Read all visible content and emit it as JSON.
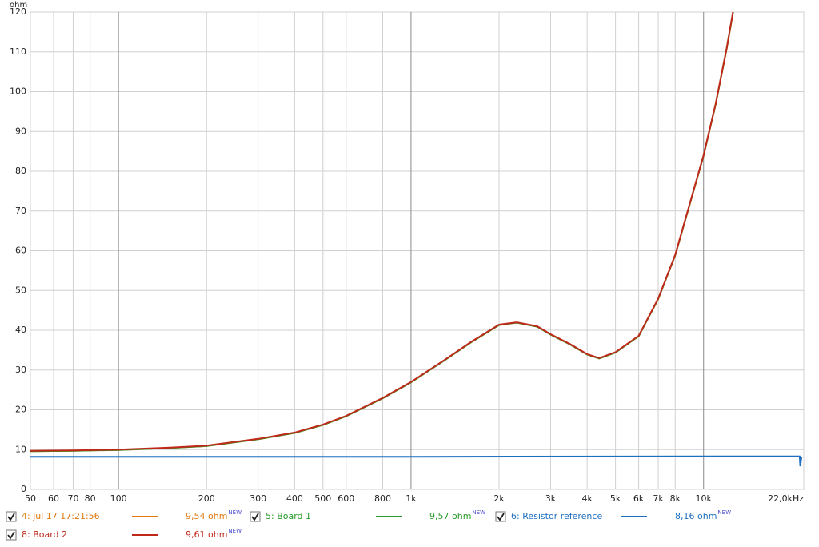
{
  "chart_data": {
    "type": "line",
    "y_label": "ohm",
    "x_scale": "log",
    "grid": true,
    "xlim": [
      50,
      22000
    ],
    "ylim": [
      0,
      120
    ],
    "xticks": [
      50,
      60,
      70,
      80,
      100,
      200,
      300,
      400,
      500,
      600,
      800,
      {
        "value": 1000,
        "label": "1k"
      },
      {
        "value": 2000,
        "label": "2k"
      },
      {
        "value": 3000,
        "label": "3k"
      },
      {
        "value": 4000,
        "label": "4k"
      },
      {
        "value": 5000,
        "label": "5k"
      },
      {
        "value": 6000,
        "label": "6k"
      },
      {
        "value": 7000,
        "label": "7k"
      },
      {
        "value": 8000,
        "label": "8k"
      },
      {
        "value": 10000,
        "label": "10k"
      },
      {
        "value": 22000,
        "label": "22,0kHz"
      }
    ],
    "yticks": [
      0,
      10,
      20,
      30,
      40,
      50,
      60,
      70,
      80,
      90,
      100,
      110,
      120
    ],
    "x": [
      50,
      70,
      100,
      150,
      200,
      300,
      400,
      500,
      600,
      800,
      1000,
      1300,
      1600,
      2000,
      2300,
      2700,
      3000,
      3500,
      4000,
      4400,
      5000,
      6000,
      7000,
      8000,
      10000,
      11000,
      12000,
      12600
    ],
    "series": [
      {
        "name": "4: jul 17 17:21:56",
        "color": "#e07a10",
        "readout": "9,54 ohm",
        "tag": "NEW",
        "values": [
          9.6,
          9.7,
          9.9,
          10.4,
          10.9,
          12.6,
          14.2,
          16.2,
          18.4,
          22.9,
          26.9,
          32.4,
          36.9,
          41.3,
          41.9,
          40.9,
          38.9,
          36.4,
          33.9,
          32.9,
          34.4,
          38.5,
          47.9,
          58.9,
          83.9,
          96.9,
          110.9,
          119.9
        ]
      },
      {
        "name": "5: Board 1",
        "color": "#2a9a2a",
        "readout": "9,57 ohm",
        "tag": "NEW",
        "values": [
          9.6,
          9.7,
          9.9,
          10.4,
          10.9,
          12.6,
          14.2,
          16.2,
          18.4,
          22.9,
          26.9,
          32.4,
          36.9,
          41.3,
          41.9,
          40.9,
          38.9,
          36.4,
          33.9,
          32.9,
          34.4,
          38.5,
          47.9,
          58.9,
          83.9,
          96.9,
          110.9,
          119.9
        ]
      },
      {
        "name": "6: Resistor reference",
        "color": "#1f6fc0",
        "readout": "8,16 ohm",
        "tag": "NEW",
        "x": [
          50,
          1000,
          10000,
          21300,
          21400,
          21600
        ],
        "values": [
          8.2,
          8.2,
          8.3,
          8.3,
          5.8,
          8.2
        ]
      },
      {
        "name": "8: Board 2",
        "color": "#c0281a",
        "readout": "9,61 ohm",
        "tag": "NEW",
        "values": [
          9.7,
          9.8,
          10.0,
          10.5,
          11.0,
          12.7,
          14.3,
          16.3,
          18.5,
          23,
          27,
          32.5,
          37,
          41.4,
          42,
          41,
          39,
          36.5,
          34,
          33,
          34.5,
          38.6,
          48,
          59,
          84,
          97,
          111,
          120
        ]
      }
    ]
  }
}
